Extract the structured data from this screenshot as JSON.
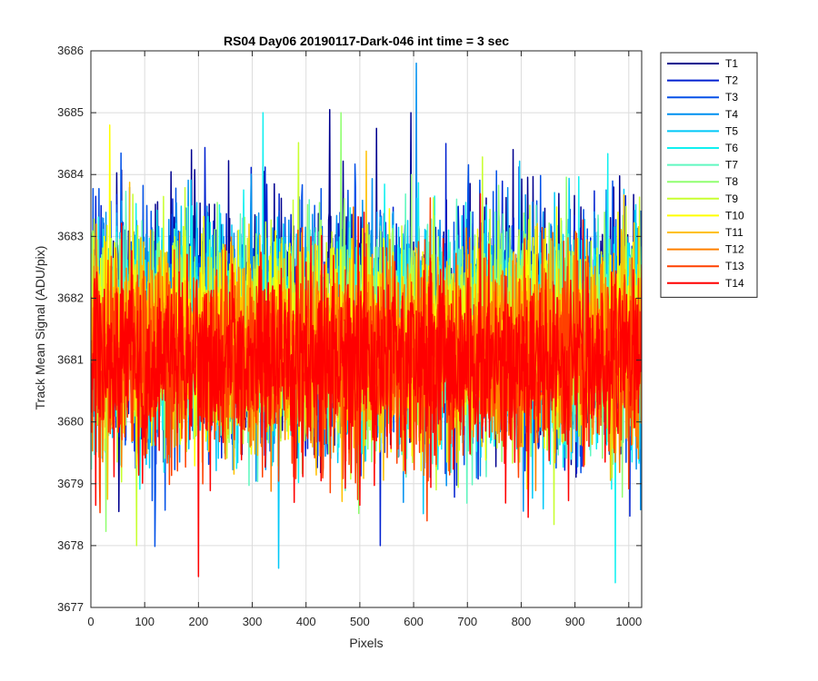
{
  "chart_data": {
    "type": "line",
    "title": "RS04 Day06 20190117-Dark-046 int time = 3 sec",
    "xlabel": "Pixels",
    "ylabel": "Track Mean Signal (ADU/pix)",
    "xlim": [
      0,
      1024
    ],
    "ylim": [
      3677,
      3686
    ],
    "xticks": [
      0,
      100,
      200,
      300,
      400,
      500,
      600,
      700,
      800,
      900,
      1000
    ],
    "yticks": [
      3677,
      3678,
      3679,
      3680,
      3681,
      3682,
      3683,
      3684,
      3685,
      3686
    ],
    "grid": true,
    "legend_position": "outside-top-right",
    "x": {
      "start": 1,
      "end": 1024,
      "step": 1
    },
    "noise": {
      "mean": 3681.2,
      "typical_range": [
        3679,
        3684
      ]
    },
    "series": [
      {
        "name": "T1",
        "color": "#00008f",
        "mean": 3681.6,
        "max": {
          "x": 595,
          "y": 3685.0
        }
      },
      {
        "name": "T2",
        "color": "#0020d0",
        "mean": 3681.5,
        "max": {
          "x": 660,
          "y": 3684.5
        },
        "min": {
          "x": 538,
          "y": 3678.0
        }
      },
      {
        "name": "T3",
        "color": "#0050e8",
        "mean": 3681.5
      },
      {
        "name": "T4",
        "color": "#0090f0",
        "mean": 3681.5,
        "max": {
          "x": 605,
          "y": 3685.8
        }
      },
      {
        "name": "T5",
        "color": "#00c8f8",
        "mean": 3681.4
      },
      {
        "name": "T6",
        "color": "#10f0f0",
        "mean": 3681.4,
        "max": {
          "x": 320,
          "y": 3685.0
        },
        "min": {
          "x": 975,
          "y": 3677.4
        }
      },
      {
        "name": "T7",
        "color": "#60f8c0",
        "mean": 3681.4
      },
      {
        "name": "T8",
        "color": "#90ff70",
        "mean": 3681.4,
        "max": {
          "x": 465,
          "y": 3685.0
        }
      },
      {
        "name": "T9",
        "color": "#c8ff30",
        "mean": 3681.3,
        "min": {
          "x": 85,
          "y": 3678.0
        }
      },
      {
        "name": "T10",
        "color": "#ffff00",
        "mean": 3681.3,
        "max": {
          "x": 35,
          "y": 3684.8
        }
      },
      {
        "name": "T11",
        "color": "#ffc000",
        "mean": 3681.2
      },
      {
        "name": "T12",
        "color": "#ff8000",
        "mean": 3681.1
      },
      {
        "name": "T13",
        "color": "#ff4000",
        "mean": 3681.0,
        "min": {
          "x": 625,
          "y": 3678.4
        }
      },
      {
        "name": "T14",
        "color": "#ff0000",
        "mean": 3681.0,
        "min": {
          "x": 200,
          "y": 3677.5
        }
      }
    ]
  }
}
